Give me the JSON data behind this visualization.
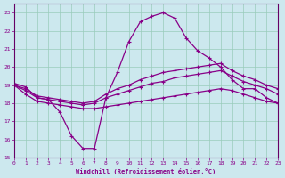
{
  "xlabel": "Windchill (Refroidissement éolien,°C)",
  "background_color": "#cce8ee",
  "grid_color": "#99ccbb",
  "line_color": "#880088",
  "spine_color": "#660066",
  "x_ticks": [
    0,
    1,
    2,
    3,
    4,
    5,
    6,
    7,
    8,
    9,
    10,
    11,
    12,
    13,
    14,
    15,
    16,
    17,
    18,
    19,
    20,
    21,
    22,
    23
  ],
  "y_ticks": [
    15,
    16,
    17,
    18,
    19,
    20,
    21,
    22,
    23
  ],
  "xlim": [
    0,
    23
  ],
  "ylim": [
    15,
    23.5
  ],
  "lines": [
    {
      "x": [
        0,
        1,
        2,
        3,
        4,
        5,
        6,
        7,
        8,
        9,
        10,
        11,
        12,
        13,
        14,
        15,
        16,
        17,
        18,
        19,
        20,
        21,
        22,
        23
      ],
      "y": [
        19.1,
        18.9,
        18.3,
        18.2,
        17.5,
        16.2,
        15.5,
        15.5,
        18.3,
        19.7,
        21.4,
        22.5,
        22.8,
        23.0,
        22.7,
        21.6,
        20.9,
        20.5,
        20.0,
        19.3,
        18.8,
        18.8,
        18.3,
        18.0
      ]
    },
    {
      "x": [
        0,
        1,
        2,
        3,
        4,
        5,
        6,
        7,
        8,
        9,
        10,
        11,
        12,
        13,
        14,
        15,
        16,
        17,
        18,
        19,
        20,
        21,
        22,
        23
      ],
      "y": [
        19.0,
        18.8,
        18.4,
        18.3,
        18.2,
        18.1,
        18.0,
        18.1,
        18.5,
        18.8,
        19.0,
        19.3,
        19.5,
        19.7,
        19.8,
        19.9,
        20.0,
        20.1,
        20.2,
        19.8,
        19.5,
        19.3,
        19.0,
        18.8
      ]
    },
    {
      "x": [
        0,
        1,
        2,
        3,
        4,
        5,
        6,
        7,
        8,
        9,
        10,
        11,
        12,
        13,
        14,
        15,
        16,
        17,
        18,
        19,
        20,
        21,
        22,
        23
      ],
      "y": [
        19.0,
        18.7,
        18.3,
        18.2,
        18.1,
        18.0,
        17.9,
        18.0,
        18.3,
        18.5,
        18.7,
        18.9,
        19.1,
        19.2,
        19.4,
        19.5,
        19.6,
        19.7,
        19.8,
        19.5,
        19.2,
        19.0,
        18.8,
        18.5
      ]
    },
    {
      "x": [
        0,
        1,
        2,
        3,
        4,
        5,
        6,
        7,
        8,
        9,
        10,
        11,
        12,
        13,
        14,
        15,
        16,
        17,
        18,
        19,
        20,
        21,
        22,
        23
      ],
      "y": [
        19.0,
        18.5,
        18.1,
        18.0,
        17.9,
        17.8,
        17.7,
        17.7,
        17.8,
        17.9,
        18.0,
        18.1,
        18.2,
        18.3,
        18.4,
        18.5,
        18.6,
        18.7,
        18.8,
        18.7,
        18.5,
        18.3,
        18.1,
        18.0
      ]
    }
  ]
}
